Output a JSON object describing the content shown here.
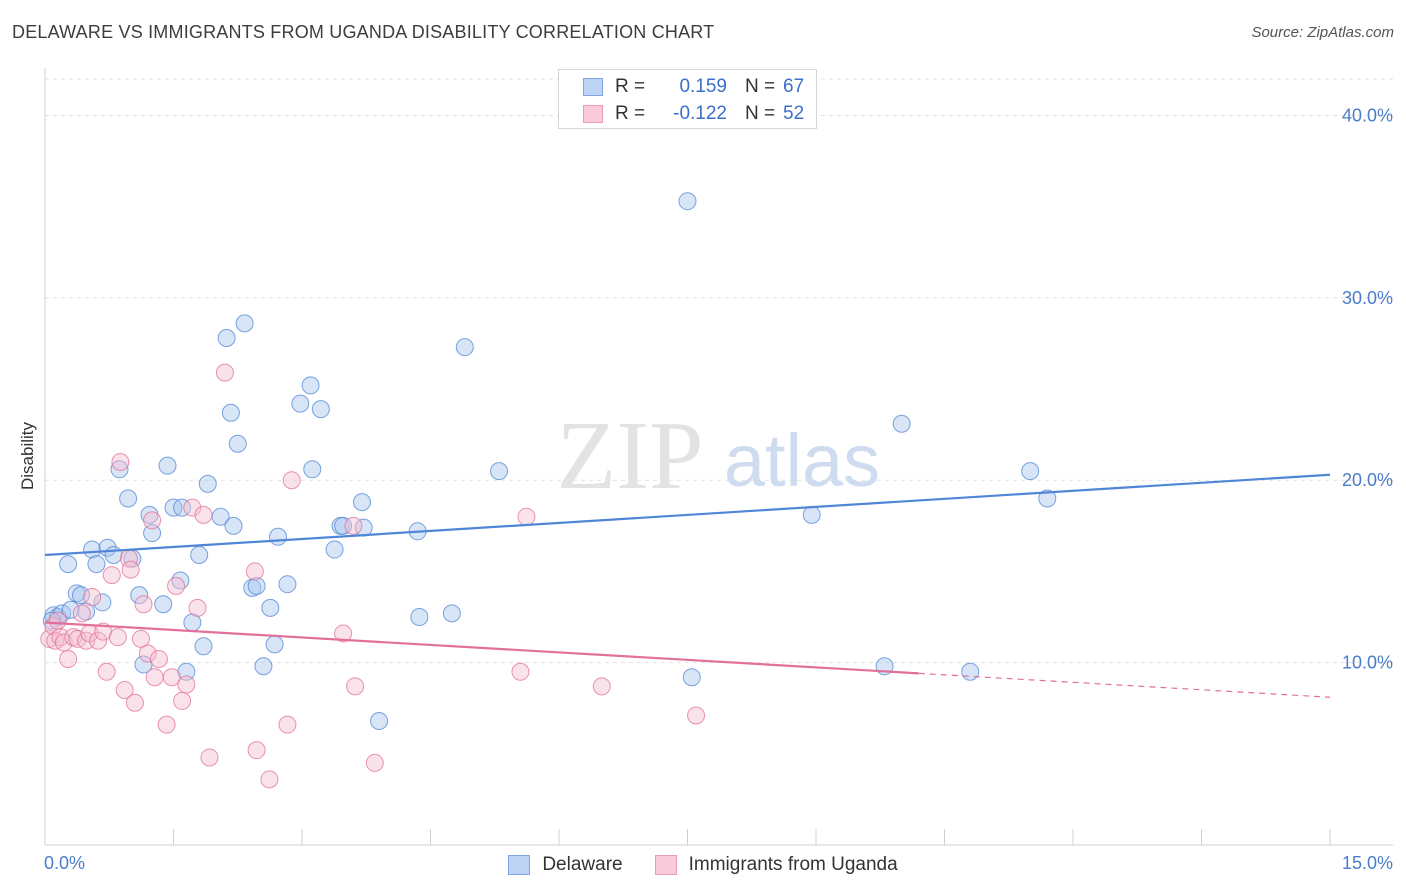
{
  "chart_data": {
    "type": "scatter",
    "title": "DELAWARE VS IMMIGRANTS FROM UGANDA DISABILITY CORRELATION CHART",
    "source": "Source: ZipAtlas.com",
    "ylabel": "Disability",
    "xlabel": "",
    "xlim": [
      0,
      15
    ],
    "ylim": [
      0,
      42
    ],
    "x_tick_labels": [
      "0.0%",
      "15.0%"
    ],
    "y_ticks": [
      10,
      20,
      30,
      40
    ],
    "y_tick_labels": [
      "10.0%",
      "20.0%",
      "30.0%",
      "40.0%"
    ],
    "grid": true,
    "watermark": {
      "zip": "ZIP",
      "atlas": "atlas"
    },
    "legend": {
      "r_label": "R =",
      "n_label": "N =",
      "entries": [
        {
          "name": "Delaware",
          "r": "0.159",
          "n": "67"
        },
        {
          "name": "Immigrants from Uganda",
          "r": "-0.122",
          "n": "52"
        }
      ]
    },
    "series": [
      {
        "name": "Delaware",
        "color": "#4f86d6",
        "fill": "#a9c6ee",
        "trend": {
          "x0": 0,
          "y0": 15.9,
          "x1": 15,
          "y1": 20.3,
          "solid_to": 15
        },
        "points": [
          [
            0.1,
            12.6
          ],
          [
            0.15,
            12.5
          ],
          [
            0.2,
            12.7
          ],
          [
            0.27,
            15.4
          ],
          [
            0.3,
            12.9
          ],
          [
            0.37,
            13.8
          ],
          [
            0.42,
            13.7
          ],
          [
            0.48,
            12.8
          ],
          [
            0.55,
            16.2
          ],
          [
            0.6,
            15.4
          ],
          [
            0.67,
            13.3
          ],
          [
            0.73,
            16.3
          ],
          [
            0.8,
            15.9
          ],
          [
            0.87,
            20.6
          ],
          [
            0.97,
            19.0
          ],
          [
            1.02,
            15.7
          ],
          [
            1.1,
            13.7
          ],
          [
            1.15,
            9.9
          ],
          [
            1.22,
            18.1
          ],
          [
            1.25,
            17.1
          ],
          [
            1.38,
            13.2
          ],
          [
            1.43,
            20.8
          ],
          [
            1.5,
            18.5
          ],
          [
            1.58,
            14.5
          ],
          [
            1.6,
            18.5
          ],
          [
            1.65,
            9.5
          ],
          [
            1.72,
            12.2
          ],
          [
            1.8,
            15.9
          ],
          [
            1.85,
            10.9
          ],
          [
            1.9,
            19.8
          ],
          [
            2.05,
            18.0
          ],
          [
            2.12,
            27.8
          ],
          [
            2.17,
            23.7
          ],
          [
            2.2,
            17.5
          ],
          [
            2.25,
            22.0
          ],
          [
            2.33,
            28.6
          ],
          [
            2.42,
            14.1
          ],
          [
            2.47,
            14.2
          ],
          [
            2.55,
            9.8
          ],
          [
            2.63,
            13.0
          ],
          [
            2.68,
            11.0
          ],
          [
            2.72,
            16.9
          ],
          [
            2.83,
            14.3
          ],
          [
            2.98,
            24.2
          ],
          [
            3.1,
            25.2
          ],
          [
            3.12,
            20.6
          ],
          [
            3.22,
            23.9
          ],
          [
            3.38,
            16.2
          ],
          [
            3.45,
            17.5
          ],
          [
            3.48,
            17.5
          ],
          [
            3.7,
            18.8
          ],
          [
            3.72,
            17.4
          ],
          [
            3.9,
            6.8
          ],
          [
            4.35,
            17.2
          ],
          [
            4.37,
            12.5
          ],
          [
            4.75,
            12.7
          ],
          [
            4.9,
            27.3
          ],
          [
            5.3,
            20.5
          ],
          [
            7.5,
            35.3
          ],
          [
            7.55,
            9.2
          ],
          [
            8.95,
            18.1
          ],
          [
            9.8,
            9.8
          ],
          [
            10.0,
            23.1
          ],
          [
            10.8,
            9.5
          ],
          [
            11.5,
            20.5
          ],
          [
            11.7,
            19.0
          ],
          [
            0.08,
            12.3
          ]
        ]
      },
      {
        "name": "Immigrants from Uganda",
        "color": "#e2709a",
        "fill": "#f5bfd1",
        "trend": {
          "x0": 0,
          "y0": 12.2,
          "x1": 15,
          "y1": 8.1,
          "solid_to": 10.2
        },
        "points": [
          [
            0.05,
            11.3
          ],
          [
            0.1,
            12.0
          ],
          [
            0.12,
            11.2
          ],
          [
            0.15,
            12.3
          ],
          [
            0.18,
            11.4
          ],
          [
            0.22,
            11.1
          ],
          [
            0.27,
            10.2
          ],
          [
            0.33,
            11.4
          ],
          [
            0.38,
            11.3
          ],
          [
            0.43,
            12.7
          ],
          [
            0.48,
            11.2
          ],
          [
            0.52,
            11.6
          ],
          [
            0.55,
            13.6
          ],
          [
            0.62,
            11.2
          ],
          [
            0.68,
            11.7
          ],
          [
            0.72,
            9.5
          ],
          [
            0.78,
            14.8
          ],
          [
            0.85,
            11.4
          ],
          [
            0.88,
            21.0
          ],
          [
            0.93,
            8.5
          ],
          [
            0.98,
            15.7
          ],
          [
            1.0,
            15.1
          ],
          [
            1.05,
            7.8
          ],
          [
            1.12,
            11.3
          ],
          [
            1.15,
            13.2
          ],
          [
            1.2,
            10.5
          ],
          [
            1.25,
            17.8
          ],
          [
            1.28,
            9.2
          ],
          [
            1.33,
            10.2
          ],
          [
            1.42,
            6.6
          ],
          [
            1.48,
            9.2
          ],
          [
            1.53,
            14.2
          ],
          [
            1.6,
            7.9
          ],
          [
            1.65,
            8.8
          ],
          [
            1.72,
            18.5
          ],
          [
            1.78,
            13.0
          ],
          [
            1.85,
            18.1
          ],
          [
            1.92,
            4.8
          ],
          [
            2.1,
            25.9
          ],
          [
            2.45,
            15.0
          ],
          [
            2.47,
            5.2
          ],
          [
            2.62,
            3.6
          ],
          [
            2.83,
            6.6
          ],
          [
            2.88,
            20.0
          ],
          [
            3.48,
            11.6
          ],
          [
            3.6,
            17.5
          ],
          [
            3.62,
            8.7
          ],
          [
            3.85,
            4.5
          ],
          [
            5.55,
            9.5
          ],
          [
            5.62,
            18.0
          ],
          [
            6.5,
            8.7
          ],
          [
            7.6,
            7.1
          ]
        ]
      }
    ]
  }
}
